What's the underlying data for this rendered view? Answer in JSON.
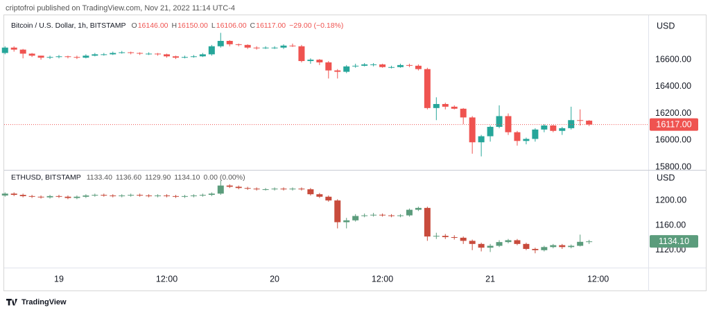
{
  "header": "criptofroi published on TradingView.com, Nov 21, 2022 11:14 UTC-4",
  "footer": "TradingView",
  "chart_data": [
    {
      "type": "candlestick",
      "currency": "USD",
      "legend": {
        "symbol": "Bitcoin / U.S. Dollar, 1h, BITSTAMP",
        "color": "#ef5350",
        "ohlc": [
          {
            "label": "O",
            "value": "16146.00"
          },
          {
            "label": "H",
            "value": "16150.00"
          },
          {
            "label": "L",
            "value": "16106.00"
          },
          {
            "label": "C",
            "value": "16117.00"
          }
        ],
        "change": "−29.00 (−0.18%)"
      },
      "last_price_label": "16117.00",
      "up_color": "#26a69a",
      "down_color": "#ef5350",
      "categories": [
        null,
        null,
        null,
        null,
        null,
        null,
        "19",
        null,
        null,
        null,
        null,
        null,
        null,
        null,
        null,
        null,
        null,
        null,
        "12:00",
        null,
        null,
        null,
        null,
        null,
        null,
        null,
        null,
        null,
        null,
        null,
        "20",
        null,
        null,
        null,
        null,
        null,
        null,
        null,
        null,
        null,
        null,
        null,
        "12:00",
        null,
        null,
        null,
        null,
        null,
        null,
        null,
        null,
        null,
        null,
        null,
        "21",
        null,
        null,
        null,
        null,
        null,
        null,
        null,
        null,
        null,
        null,
        null,
        "12:00",
        null,
        null,
        null,
        null,
        null
      ],
      "open": [
        16650,
        16690,
        16675,
        16645,
        16630,
        16615,
        16620,
        16625,
        16620,
        16615,
        16630,
        16640,
        16640,
        16650,
        16655,
        16650,
        16645,
        16645,
        16640,
        16625,
        16615,
        16620,
        16625,
        16640,
        16700,
        16740,
        16715,
        16710,
        16690,
        16685,
        16690,
        16690,
        16705,
        16700,
        16590,
        16600,
        16580,
        16520,
        16510,
        16550,
        16555,
        16565,
        16565,
        16545,
        16545,
        16560,
        16555,
        16530,
        16240,
        16270,
        16250,
        16235,
        16170,
        15985,
        16030,
        16100,
        16180,
        16060,
        15995,
        16010,
        16080,
        16110,
        16070,
        16090,
        16150,
        16146,
        null,
        null,
        null,
        null,
        null,
        null
      ],
      "high": [
        16700,
        16700,
        16680,
        16650,
        16630,
        16630,
        16635,
        16630,
        16630,
        16640,
        16650,
        16650,
        16660,
        16665,
        16660,
        16655,
        16655,
        16650,
        16645,
        16630,
        16630,
        16635,
        16650,
        16710,
        16800,
        16745,
        16720,
        16715,
        16700,
        16700,
        16700,
        16715,
        16720,
        16710,
        16610,
        16605,
        16590,
        16530,
        16560,
        16570,
        16575,
        16575,
        16570,
        16555,
        16570,
        16570,
        16565,
        16540,
        16320,
        16280,
        16260,
        16240,
        16180,
        16040,
        16110,
        16260,
        16200,
        16070,
        16020,
        16090,
        16120,
        16115,
        16100,
        16250,
        16230,
        16150,
        null,
        null,
        null,
        null,
        null,
        null
      ],
      "low": [
        16640,
        16660,
        16610,
        16620,
        16600,
        16605,
        16610,
        16610,
        16605,
        16610,
        16625,
        16630,
        16635,
        16645,
        16640,
        16635,
        16635,
        16630,
        16615,
        16605,
        16610,
        16615,
        16620,
        16630,
        16690,
        16700,
        16700,
        16680,
        16675,
        16680,
        16680,
        16680,
        16695,
        16580,
        16570,
        16560,
        16460,
        16460,
        16500,
        16540,
        16550,
        16550,
        16540,
        16535,
        16540,
        16545,
        16520,
        16230,
        16150,
        16230,
        16230,
        16120,
        15900,
        15880,
        15990,
        16090,
        16040,
        15960,
        15970,
        15990,
        16060,
        16060,
        16040,
        16080,
        16110,
        16106,
        null,
        null,
        null,
        null,
        null,
        null
      ],
      "close": [
        16690,
        16675,
        16645,
        16630,
        16615,
        16620,
        16625,
        16620,
        16615,
        16630,
        16640,
        16640,
        16650,
        16655,
        16650,
        16645,
        16645,
        16640,
        16625,
        16615,
        16620,
        16625,
        16640,
        16700,
        16740,
        16715,
        16710,
        16690,
        16685,
        16690,
        16690,
        16705,
        16700,
        16590,
        16600,
        16580,
        16520,
        16510,
        16550,
        16555,
        16565,
        16565,
        16545,
        16545,
        16560,
        16555,
        16530,
        16240,
        16270,
        16250,
        16235,
        16170,
        15985,
        16030,
        16100,
        16180,
        16060,
        15995,
        16010,
        16080,
        16110,
        16070,
        16090,
        16150,
        16146,
        16117,
        null,
        null,
        null,
        null,
        null,
        null
      ],
      "ylim": [
        15790,
        16900
      ],
      "yticks": [
        {
          "value": 15800,
          "label": "15800.00"
        },
        {
          "value": 16000,
          "label": "16000.00"
        },
        {
          "value": 16200,
          "label": "16200.00"
        },
        {
          "value": 16400,
          "label": "16400.00"
        },
        {
          "value": 16600,
          "label": "16600.00"
        }
      ],
      "grid": false
    },
    {
      "type": "candlestick",
      "currency": "USD",
      "legend": {
        "symbol": "ETHUSD, BITSTAMP",
        "color": "#555555",
        "ohlc": [
          {
            "value": "1133.40"
          },
          {
            "value": "1136.60"
          },
          {
            "value": "1129.90"
          },
          {
            "value": "1134.10"
          }
        ],
        "change": "0.00 (0.00%)"
      },
      "last_price_label": "1134.10",
      "up_color": "#5b9c7c",
      "down_color": "#c84b3c",
      "open": [
        1208,
        1211,
        1209,
        1207,
        1206,
        1205,
        1207,
        1206,
        1204,
        1206,
        1208,
        1209,
        1208,
        1207,
        1208,
        1209,
        1208,
        1207,
        1208,
        1207,
        1206,
        1207,
        1208,
        1209,
        1211,
        1224,
        1222,
        1220,
        1219,
        1218,
        1218,
        1219,
        1218,
        1219,
        1218,
        1210,
        1206,
        1200,
        1165,
        1168,
        1175,
        1176,
        1177,
        1176,
        1175,
        1176,
        1185,
        1188,
        1142,
        1143,
        1141,
        1140,
        1135,
        1130,
        1124,
        1127,
        1133,
        1136,
        1130,
        1122,
        1120,
        1125,
        1128,
        1125,
        1127,
        1133.4,
        null,
        null,
        null,
        null,
        null,
        null
      ],
      "high": [
        1213,
        1213,
        1211,
        1209,
        1208,
        1209,
        1209,
        1208,
        1208,
        1210,
        1211,
        1211,
        1210,
        1210,
        1211,
        1211,
        1210,
        1210,
        1210,
        1209,
        1209,
        1210,
        1211,
        1213,
        1232,
        1226,
        1224,
        1222,
        1221,
        1220,
        1221,
        1221,
        1221,
        1221,
        1220,
        1212,
        1208,
        1202,
        1172,
        1178,
        1179,
        1180,
        1179,
        1178,
        1178,
        1187,
        1190,
        1190,
        1148,
        1146,
        1144,
        1142,
        1137,
        1132,
        1130,
        1136,
        1138,
        1138,
        1132,
        1124,
        1127,
        1130,
        1130,
        1129,
        1145,
        1136.6,
        null,
        null,
        null,
        null,
        null,
        null
      ],
      "low": [
        1206,
        1207,
        1205,
        1204,
        1203,
        1203,
        1204,
        1202,
        1202,
        1204,
        1206,
        1206,
        1205,
        1205,
        1206,
        1206,
        1205,
        1205,
        1205,
        1204,
        1204,
        1205,
        1206,
        1207,
        1209,
        1220,
        1218,
        1217,
        1216,
        1216,
        1216,
        1216,
        1216,
        1216,
        1208,
        1204,
        1198,
        1155,
        1155,
        1166,
        1173,
        1174,
        1174,
        1173,
        1173,
        1174,
        1183,
        1135,
        1138,
        1138,
        1137,
        1130,
        1120,
        1118,
        1117,
        1125,
        1131,
        1128,
        1120,
        1115,
        1118,
        1123,
        1122,
        1123,
        1126,
        1129.9,
        null,
        null,
        null,
        null,
        null,
        null
      ],
      "close": [
        1211,
        1209,
        1207,
        1206,
        1205,
        1207,
        1206,
        1204,
        1206,
        1208,
        1209,
        1208,
        1207,
        1208,
        1209,
        1208,
        1207,
        1208,
        1207,
        1206,
        1207,
        1208,
        1209,
        1211,
        1224,
        1222,
        1220,
        1219,
        1218,
        1218,
        1219,
        1218,
        1219,
        1218,
        1210,
        1206,
        1200,
        1165,
        1168,
        1175,
        1176,
        1177,
        1176,
        1175,
        1176,
        1185,
        1188,
        1142,
        1143,
        1141,
        1140,
        1135,
        1130,
        1124,
        1127,
        1133,
        1136,
        1130,
        1122,
        1120,
        1125,
        1128,
        1125,
        1127,
        1133.4,
        1134.1,
        null,
        null,
        null,
        null,
        null,
        null
      ],
      "ylim": [
        1093,
        1247
      ],
      "yticks": [
        {
          "value": 1120,
          "label": "1120.00"
        },
        {
          "value": 1160,
          "label": "1160.00"
        },
        {
          "value": 1200,
          "label": "1200.00"
        }
      ],
      "grid": false
    }
  ]
}
